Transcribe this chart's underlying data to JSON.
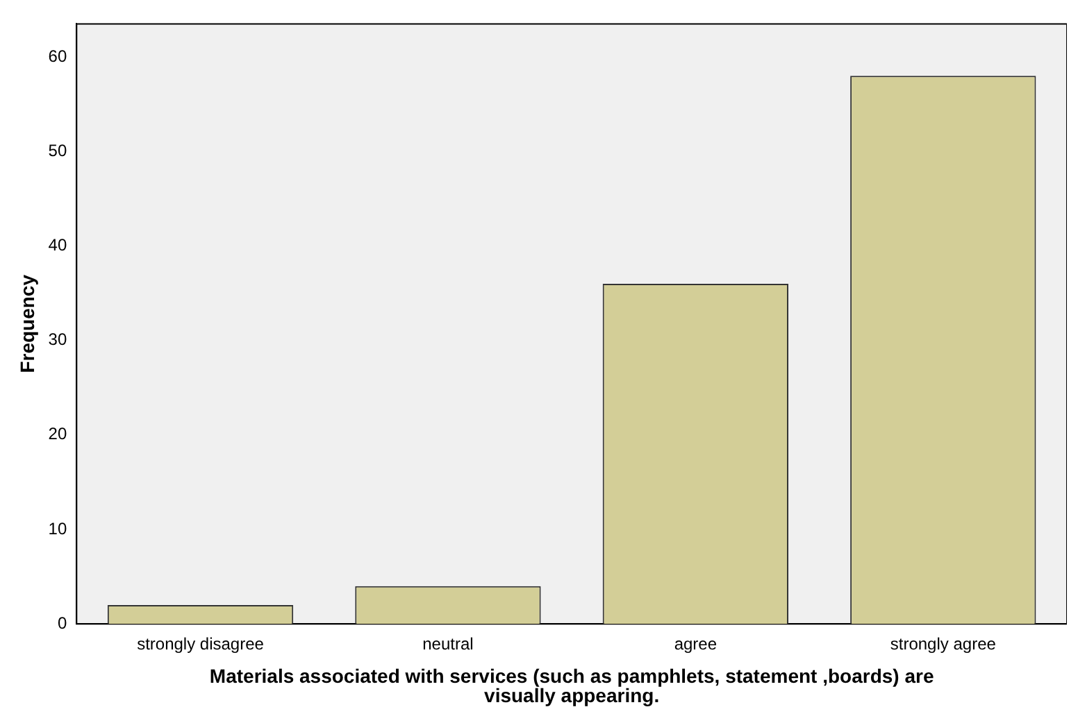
{
  "chart_data": {
    "type": "bar",
    "xlabel": "Materials associated with services (such as pamphlets, statement ,boards) are visually appearing.",
    "ylabel": "Frequency",
    "categories": [
      "strongly disagree",
      "neutral",
      "agree",
      "strongly agree"
    ],
    "values": [
      2,
      4,
      36,
      58
    ],
    "color": "#d3ce97",
    "ylim": [
      0,
      63.5
    ],
    "yticks": [
      0,
      10,
      20,
      30,
      40,
      50,
      60
    ],
    "grid": false,
    "legend": false
  }
}
